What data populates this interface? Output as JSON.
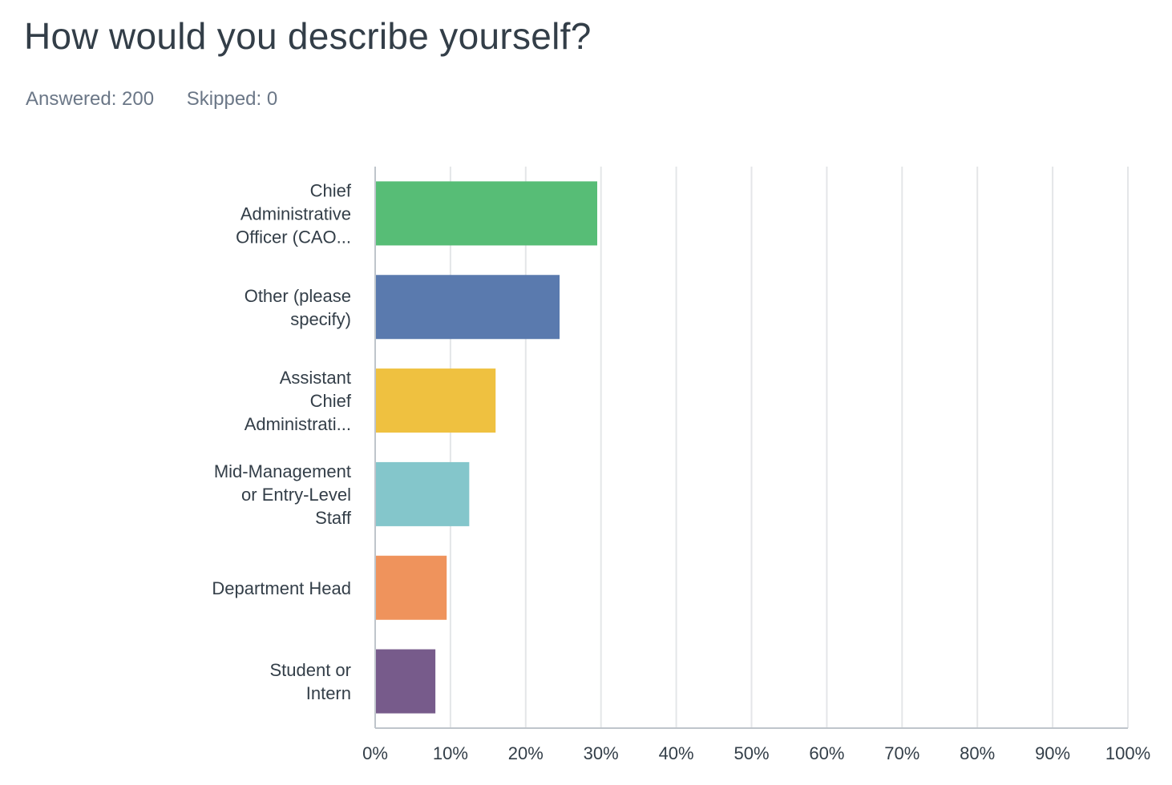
{
  "question": {
    "title": "How would you describe yourself?",
    "answered": "Answered: 200",
    "skipped": "Skipped: 0"
  },
  "chart_data": {
    "type": "bar",
    "orientation": "horizontal",
    "categories": [
      [
        "Chief",
        "Administrative",
        "Officer (CAO..."
      ],
      [
        "Other (please",
        "specify)"
      ],
      [
        "Assistant",
        "Chief",
        "Administrati..."
      ],
      [
        "Mid-Management",
        "or Entry-Level",
        "Staff"
      ],
      [
        "Department Head"
      ],
      [
        "Student or",
        "Intern"
      ]
    ],
    "values": [
      29.5,
      24.5,
      16,
      12.5,
      9.5,
      8
    ],
    "colors": [
      "#57bd76",
      "#5a7aae",
      "#efc140",
      "#84c6cb",
      "#ef935c",
      "#775b8b"
    ],
    "xlim": [
      0,
      100
    ],
    "xticks": [
      "0%",
      "10%",
      "20%",
      "30%",
      "40%",
      "50%",
      "60%",
      "70%",
      "80%",
      "90%",
      "100%"
    ],
    "grid": true,
    "title": "",
    "xlabel": "",
    "ylabel": ""
  }
}
